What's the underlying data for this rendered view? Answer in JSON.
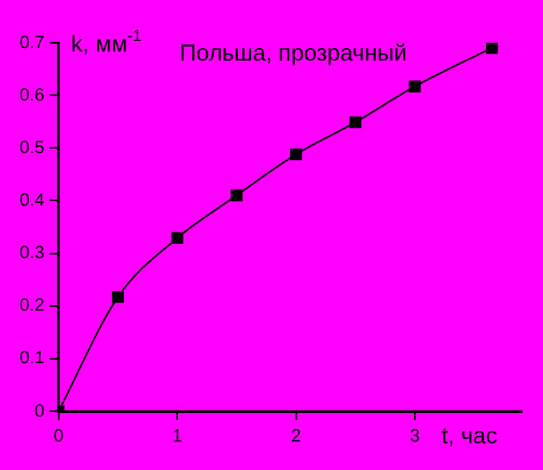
{
  "chart_data": {
    "type": "line",
    "title": "Польша, прозрачный",
    "xlabel": "t, час",
    "ylabel": "k, мм$^{-1}$",
    "x": [
      0,
      0.5,
      1,
      1.5,
      2,
      2.5,
      3,
      3.65
    ],
    "series": [
      {
        "color": "#000000",
        "values": [
          0,
          0.217,
          0.329,
          0.41,
          0.488,
          0.549,
          0.617,
          0.69
        ]
      }
    ],
    "xlim": [
      0,
      3.9
    ],
    "xticks": [
      0,
      1,
      2,
      3
    ],
    "ylim": [
      0,
      0.7
    ],
    "yticks": [
      0,
      0.1,
      0.2,
      0.3,
      0.4,
      0.5,
      0.6,
      0.7
    ],
    "grid": false,
    "legend": false,
    "marker": "square",
    "line_style": "solid"
  }
}
